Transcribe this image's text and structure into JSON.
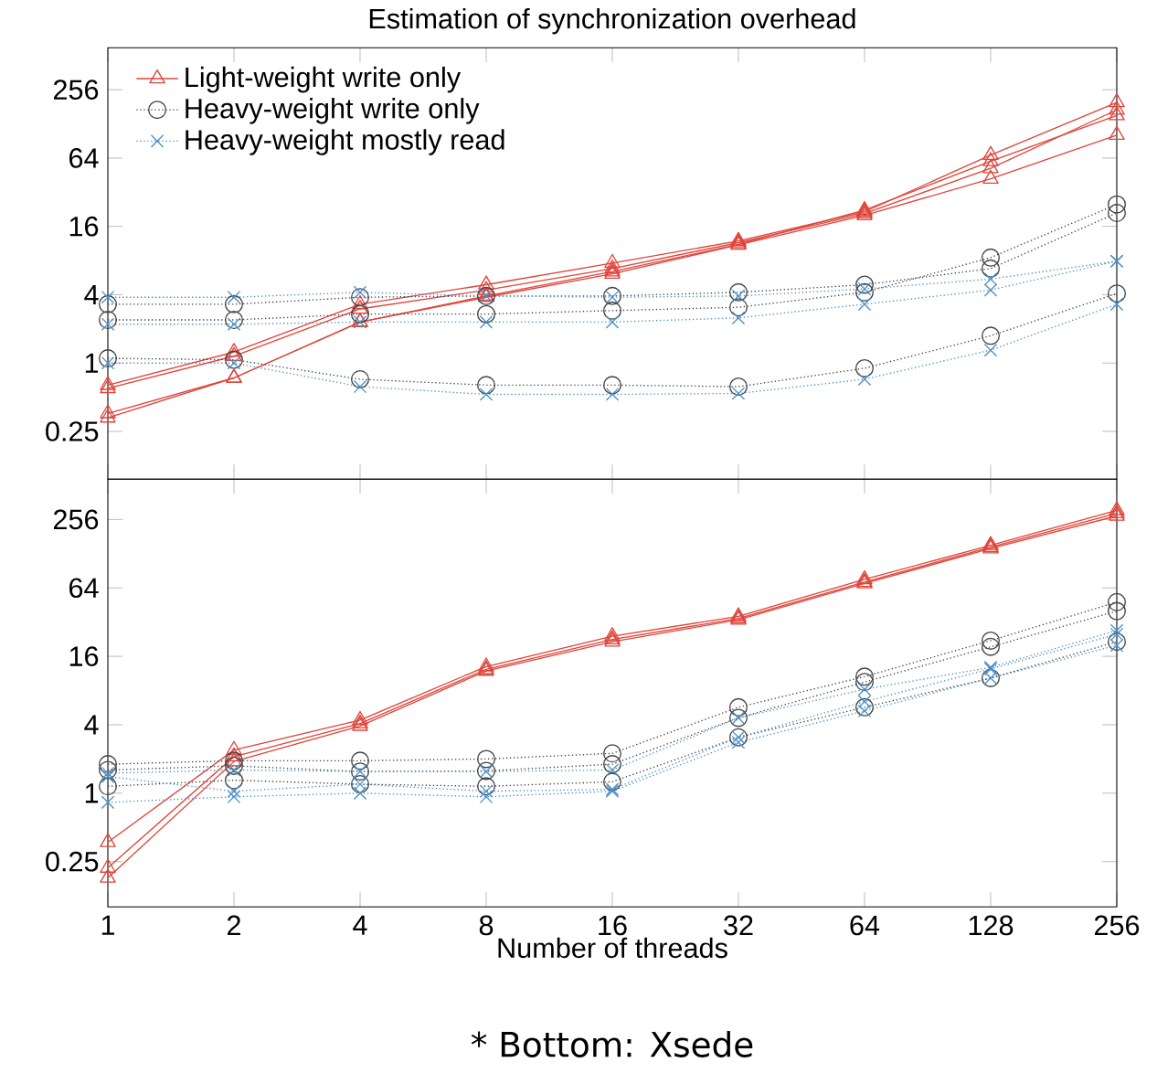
{
  "chart_data": [
    {
      "type": "line",
      "title": "Estimation of synchronization overhead",
      "log": "xy",
      "x": [
        1,
        2,
        4,
        8,
        16,
        32,
        64,
        128,
        256
      ],
      "xlim": [
        1,
        256
      ],
      "ylim": [
        0.095,
        600
      ],
      "xticks": [
        1,
        2,
        4,
        8,
        16,
        32,
        64,
        128,
        256
      ],
      "yticks": [
        0.25,
        1,
        4,
        16,
        64,
        256
      ],
      "tick_labels": "y",
      "legend": "top left",
      "series": [
        {
          "name": "Light-weight write only",
          "color": "#e0443a",
          "marker": "triangle",
          "line_style": "solid",
          "values": [
            0.64,
            1.25,
            3.3,
            4.9,
            7.6,
            11.9,
            21.5,
            68,
            198
          ]
        },
        {
          "color": "#e0443a",
          "marker": "triangle",
          "line_style": "solid",
          "values": [
            0.6,
            1.15,
            3.0,
            4.4,
            6.8,
            11.5,
            20.8,
            52,
            170
          ]
        },
        {
          "color": "#e0443a",
          "marker": "triangle",
          "line_style": "solid",
          "values": [
            0.36,
            0.74,
            2.3,
            3.9,
            6.4,
            11.1,
            22.3,
            60,
            152
          ]
        },
        {
          "color": "#e0443a",
          "marker": "triangle",
          "line_style": "solid",
          "values": [
            0.33,
            0.74,
            2.3,
            3.8,
            6.1,
            11,
            20,
            42,
            102
          ]
        },
        {
          "name": "Heavy-weight write only",
          "color": "#444444",
          "marker": "circle",
          "line_style": "dotted",
          "values": [
            3.3,
            3.3,
            3.8,
            3.9,
            3.9,
            4.2,
            4.9,
            6.8,
            21
          ]
        },
        {
          "color": "#444444",
          "marker": "circle",
          "line_style": "dotted",
          "values": [
            2.4,
            2.4,
            2.7,
            2.7,
            2.9,
            3.1,
            4.2,
            8.5,
            25
          ]
        },
        {
          "color": "#444444",
          "marker": "circle",
          "line_style": "dotted",
          "values": [
            1.1,
            1.07,
            0.72,
            0.64,
            0.64,
            0.62,
            0.9,
            1.74,
            4.1
          ]
        },
        {
          "name": "Heavy-weight mostly read",
          "color": "#4a90c8",
          "marker": "cross",
          "line_style": "dotted",
          "values": [
            3.8,
            3.8,
            4.2,
            3.9,
            3.8,
            3.9,
            4.5,
            5.5,
            7.9
          ]
        },
        {
          "color": "#4a90c8",
          "marker": "cross",
          "line_style": "dotted",
          "values": [
            2.2,
            2.2,
            2.3,
            2.3,
            2.3,
            2.5,
            3.3,
            4.4,
            7.9
          ]
        },
        {
          "color": "#4a90c8",
          "marker": "cross",
          "line_style": "dotted",
          "values": [
            1.0,
            1.0,
            0.62,
            0.53,
            0.53,
            0.54,
            0.72,
            1.3,
            3.3
          ]
        }
      ]
    },
    {
      "type": "line",
      "xlabel": "Number of threads",
      "log": "xy",
      "x": [
        1,
        2,
        4,
        8,
        16,
        32,
        64,
        128,
        256
      ],
      "xlim": [
        1,
        256
      ],
      "ylim": [
        0.1,
        580
      ],
      "xticks": [
        1,
        2,
        4,
        8,
        16,
        32,
        64,
        128,
        256
      ],
      "yticks": [
        0.25,
        1,
        4,
        16,
        64,
        256
      ],
      "annotations": [
        "* Bottom: Xsede"
      ],
      "series": [
        {
          "color": "#e0443a",
          "marker": "triangle",
          "line_style": "solid",
          "values": [
            0.37,
            2.4,
            4.4,
            13,
            24,
            36,
            76,
            152,
            308
          ]
        },
        {
          "color": "#e0443a",
          "marker": "triangle",
          "line_style": "solid",
          "values": [
            0.22,
            2.1,
            4.1,
            12.3,
            22.5,
            34.5,
            72,
            146,
            290
          ]
        },
        {
          "color": "#e0443a",
          "marker": "triangle",
          "line_style": "solid",
          "values": [
            0.18,
            1.9,
            3.9,
            11.9,
            21.5,
            33.5,
            70,
            142,
            275
          ]
        },
        {
          "color": "#444444",
          "marker": "circle",
          "line_style": "dotted",
          "values": [
            1.8,
            1.93,
            1.93,
            2.0,
            2.24,
            5.7,
            10.6,
            22,
            48
          ]
        },
        {
          "color": "#444444",
          "marker": "circle",
          "line_style": "dotted",
          "values": [
            1.6,
            1.74,
            1.55,
            1.57,
            1.8,
            4.6,
            9.5,
            19.4,
            40
          ]
        },
        {
          "color": "#444444",
          "marker": "circle",
          "line_style": "dotted",
          "values": [
            1.15,
            1.3,
            1.2,
            1.15,
            1.26,
            3.1,
            5.7,
            10.3,
            21.5
          ]
        },
        {
          "color": "#4a90c8",
          "marker": "cross",
          "line_style": "dotted",
          "values": [
            1.5,
            1.6,
            1.55,
            1.55,
            1.6,
            4.6,
            8.2,
            12.8,
            27
          ]
        },
        {
          "color": "#4a90c8",
          "marker": "cross",
          "line_style": "dotted",
          "values": [
            1.4,
            1.04,
            1.2,
            1.04,
            1.08,
            3.1,
            6.4,
            12.4,
            25
          ]
        },
        {
          "color": "#4a90c8",
          "marker": "cross",
          "line_style": "dotted",
          "values": [
            0.83,
            0.93,
            1.0,
            0.93,
            1.04,
            2.8,
            5.3,
            10.3,
            20
          ]
        }
      ]
    }
  ]
}
